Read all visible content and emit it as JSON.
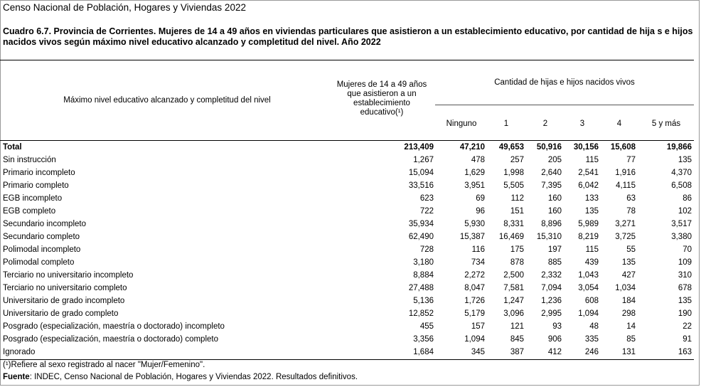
{
  "census_title": "Censo Nacional de Población, Hogares y Viviendas 2022",
  "caption": "Cuadro 6.7. Provincia de Corrientes. Mujeres de 14 a 49 años en viviendas particulares que asistieron a un establecimiento educativo, por cantidad de hija s e hijos nacidos vivos según máximo nivel educativo alcanzado y completitud del nivel. Año 2022",
  "header": {
    "col_level": "Máximo nivel educativo alcanzado y completitud del nivel",
    "col_women": "Mujeres de 14 a 49 años que asistieron a un establecimiento educativo(¹)",
    "group": "Cantidad de hijas e hijos nacidos vivos",
    "children": [
      "Ninguno",
      "1",
      "2",
      "3",
      "4",
      "5 y más"
    ]
  },
  "rows": [
    {
      "label": "Total",
      "values": [
        "213,409",
        "47,210",
        "49,653",
        "50,916",
        "30,156",
        "15,608",
        "19,866"
      ]
    },
    {
      "label": "Sin instrucción",
      "values": [
        "1,267",
        "478",
        "257",
        "205",
        "115",
        "77",
        "135"
      ]
    },
    {
      "label": "Primario incompleto",
      "values": [
        "15,094",
        "1,629",
        "1,998",
        "2,640",
        "2,541",
        "1,916",
        "4,370"
      ]
    },
    {
      "label": "Primario completo",
      "values": [
        "33,516",
        "3,951",
        "5,505",
        "7,395",
        "6,042",
        "4,115",
        "6,508"
      ]
    },
    {
      "label": "EGB incompleto",
      "values": [
        "623",
        "69",
        "112",
        "160",
        "133",
        "63",
        "86"
      ]
    },
    {
      "label": "EGB completo",
      "values": [
        "722",
        "96",
        "151",
        "160",
        "135",
        "78",
        "102"
      ]
    },
    {
      "label": "Secundario incompleto",
      "values": [
        "35,934",
        "5,930",
        "8,331",
        "8,896",
        "5,989",
        "3,271",
        "3,517"
      ]
    },
    {
      "label": "Secundario completo",
      "values": [
        "62,490",
        "15,387",
        "16,469",
        "15,310",
        "8,219",
        "3,725",
        "3,380"
      ]
    },
    {
      "label": "Polimodal incompleto",
      "values": [
        "728",
        "116",
        "175",
        "197",
        "115",
        "55",
        "70"
      ]
    },
    {
      "label": "Polimodal completo",
      "values": [
        "3,180",
        "734",
        "878",
        "885",
        "439",
        "135",
        "109"
      ]
    },
    {
      "label": "Terciario no universitario incompleto",
      "values": [
        "8,884",
        "2,272",
        "2,500",
        "2,332",
        "1,043",
        "427",
        "310"
      ]
    },
    {
      "label": "Terciario no universitario completo",
      "values": [
        "27,488",
        "8,047",
        "7,581",
        "7,094",
        "3,054",
        "1,034",
        "678"
      ]
    },
    {
      "label": "Universitario de grado incompleto",
      "values": [
        "5,136",
        "1,726",
        "1,247",
        "1,236",
        "608",
        "184",
        "135"
      ]
    },
    {
      "label": "Universitario de grado completo",
      "values": [
        "12,852",
        "5,179",
        "3,096",
        "2,995",
        "1,094",
        "298",
        "190"
      ]
    },
    {
      "label": "Posgrado (especialización, maestría o doctorado) incompleto",
      "values": [
        "455",
        "157",
        "121",
        "93",
        "48",
        "14",
        "22"
      ]
    },
    {
      "label": "Posgrado (especialización, maestría o doctorado) completo",
      "values": [
        "3,356",
        "1,094",
        "845",
        "906",
        "335",
        "85",
        "91"
      ]
    },
    {
      "label": "Ignorado",
      "values": [
        "1,684",
        "345",
        "387",
        "412",
        "246",
        "131",
        "163"
      ]
    }
  ],
  "footnote": "(¹)Refiere al sexo registrado al nacer \"Mujer/Femenino\".",
  "source_label": "Fuente",
  "source_text": ": INDEC, Censo Nacional de Población, Hogares y Viviendas 2022. Resultados definitivos."
}
